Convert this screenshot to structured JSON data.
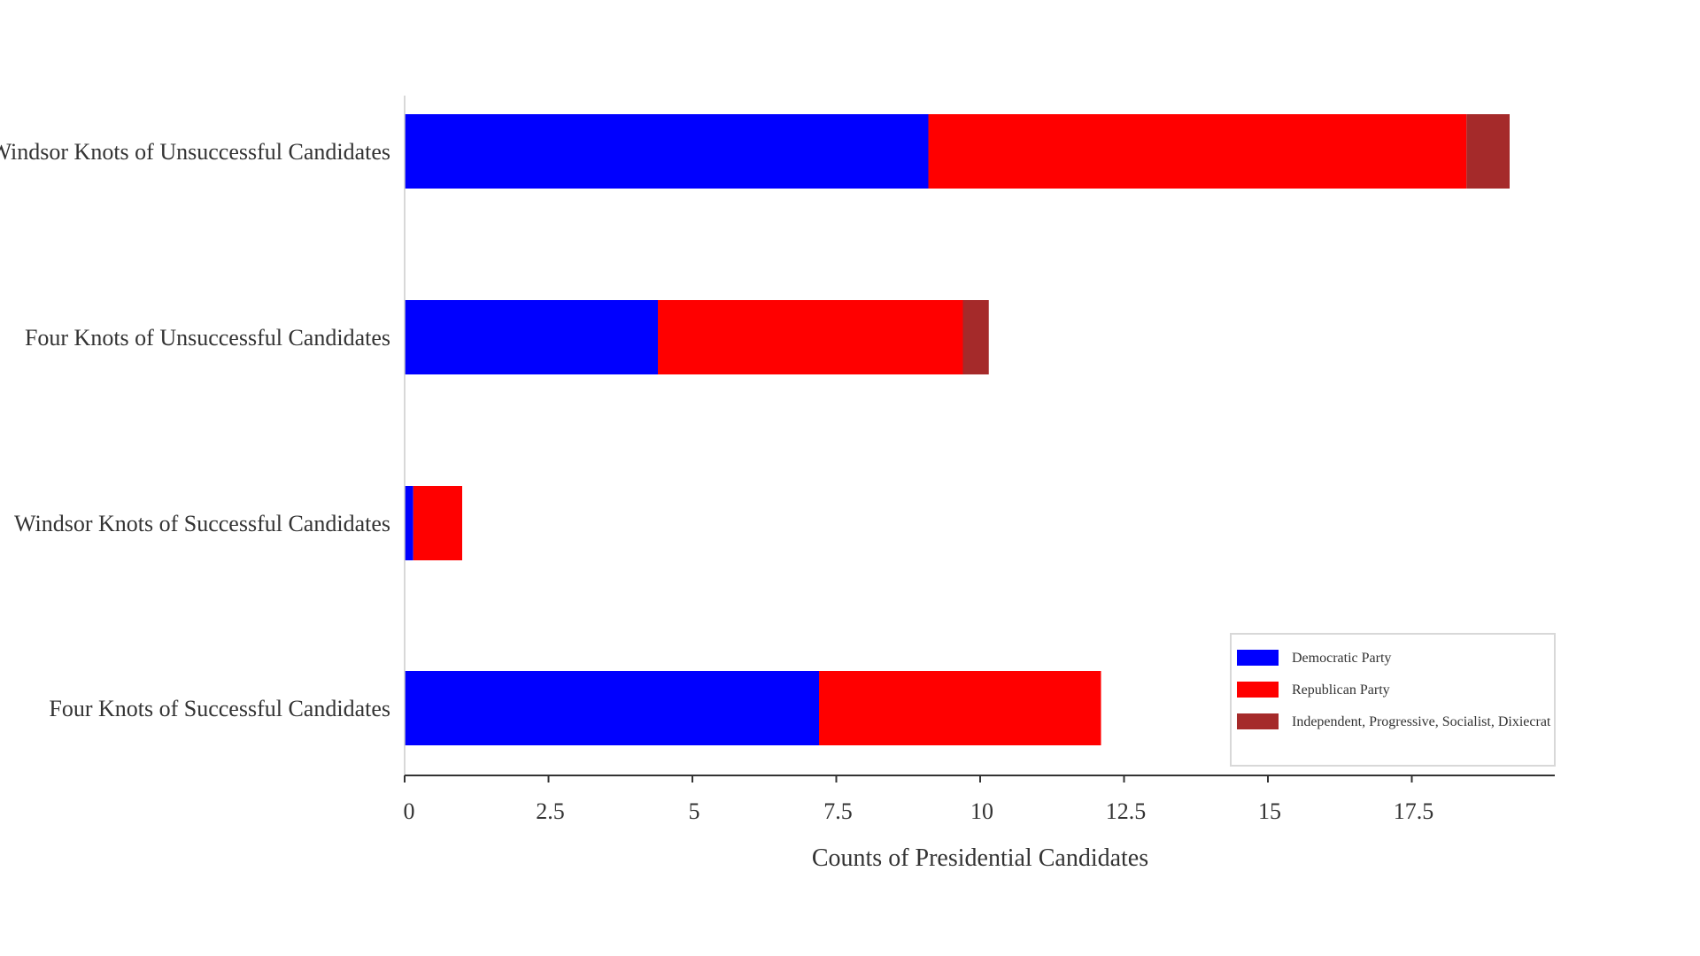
{
  "chart_data": {
    "type": "bar",
    "orientation": "horizontal",
    "stacked": true,
    "categories": [
      "Windsor Knots of Unsuccessful Candidates",
      "Four Knots of Unsuccessful Candidates",
      "Windsor Knots of Successful Candidates",
      "Four Knots of Successful Candidates"
    ],
    "series": [
      {
        "name": "Democratic Party",
        "color": "#0000ff",
        "values": [
          9.1,
          4.4,
          0.15,
          7.2
        ]
      },
      {
        "name": "Republican Party",
        "color": "#ff0000",
        "values": [
          9.35,
          5.3,
          0.85,
          4.9
        ]
      },
      {
        "name": "Independent, Progressive, Socialist, Dixiecrat",
        "color": "#a52a2a",
        "values": [
          0.75,
          0.45,
          0,
          0
        ]
      }
    ],
    "xlabel": "Counts of Presidential Candidates",
    "ylabel": "",
    "xlim": [
      0,
      20
    ],
    "xticks": [
      "0",
      "2.5",
      "5",
      "7.5",
      "10",
      "12.5",
      "15",
      "17.5"
    ],
    "xtick_values": [
      0,
      2.5,
      5,
      7.5,
      10,
      12.5,
      15,
      17.5
    ],
    "grid": false,
    "legend_position": "bottom-right"
  }
}
